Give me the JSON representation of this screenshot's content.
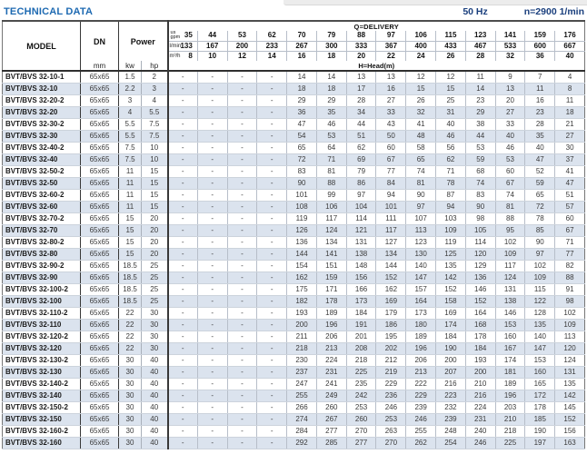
{
  "header": {
    "title": "TECHNICAL DATA",
    "frequency": "50 Hz",
    "speed": "n=2900 1/min"
  },
  "table": {
    "columns": {
      "model": "MODEL",
      "dn": "DN",
      "dn_unit": "mm",
      "power": "Power",
      "power_kw": "kw",
      "power_hp": "hp",
      "delivery_title": "Q=DELIVERY",
      "head_title": "H=Head(m)"
    },
    "units": {
      "gpm_line1": "us",
      "gpm_line2": "gpm",
      "lmin": "l/min",
      "m3h": "m³/h"
    },
    "delivery": {
      "us_gpm": [
        "35",
        "44",
        "53",
        "62",
        "70",
        "79",
        "88",
        "97",
        "106",
        "115",
        "123",
        "141",
        "159",
        "176"
      ],
      "l_min": [
        "133",
        "167",
        "200",
        "233",
        "267",
        "300",
        "333",
        "367",
        "400",
        "433",
        "467",
        "533",
        "600",
        "667"
      ],
      "m3_h": [
        "8",
        "10",
        "12",
        "14",
        "16",
        "18",
        "20",
        "22",
        "24",
        "26",
        "28",
        "32",
        "36",
        "40"
      ]
    },
    "rows": [
      {
        "model": "BVT/BVS 32-10-1",
        "dn": "65x65",
        "kw": "1.5",
        "hp": "2",
        "head": [
          "-",
          "-",
          "-",
          "-",
          "14",
          "14",
          "13",
          "13",
          "12",
          "12",
          "11",
          "9",
          "7",
          "4"
        ]
      },
      {
        "model": "BVT/BVS 32-10",
        "dn": "65x65",
        "kw": "2.2",
        "hp": "3",
        "head": [
          "-",
          "-",
          "-",
          "-",
          "18",
          "18",
          "17",
          "16",
          "15",
          "15",
          "14",
          "13",
          "11",
          "8"
        ]
      },
      {
        "model": "BVT/BVS 32-20-2",
        "dn": "65x65",
        "kw": "3",
        "hp": "4",
        "head": [
          "-",
          "-",
          "-",
          "-",
          "29",
          "29",
          "28",
          "27",
          "26",
          "25",
          "23",
          "20",
          "16",
          "11"
        ]
      },
      {
        "model": "BVT/BVS 32-20",
        "dn": "65x65",
        "kw": "4",
        "hp": "5.5",
        "head": [
          "-",
          "-",
          "-",
          "-",
          "36",
          "35",
          "34",
          "33",
          "32",
          "31",
          "29",
          "27",
          "23",
          "18"
        ]
      },
      {
        "model": "BVT/BVS 32-30-2",
        "dn": "65x65",
        "kw": "5.5",
        "hp": "7.5",
        "head": [
          "-",
          "-",
          "-",
          "-",
          "47",
          "46",
          "44",
          "43",
          "41",
          "40",
          "38",
          "33",
          "28",
          "21"
        ]
      },
      {
        "model": "BVT/BVS 32-30",
        "dn": "65x65",
        "kw": "5.5",
        "hp": "7.5",
        "head": [
          "-",
          "-",
          "-",
          "-",
          "54",
          "53",
          "51",
          "50",
          "48",
          "46",
          "44",
          "40",
          "35",
          "27"
        ]
      },
      {
        "model": "BVT/BVS 32-40-2",
        "dn": "65x65",
        "kw": "7.5",
        "hp": "10",
        "head": [
          "-",
          "-",
          "-",
          "-",
          "65",
          "64",
          "62",
          "60",
          "58",
          "56",
          "53",
          "46",
          "40",
          "30"
        ]
      },
      {
        "model": "BVT/BVS 32-40",
        "dn": "65x65",
        "kw": "7.5",
        "hp": "10",
        "head": [
          "-",
          "-",
          "-",
          "-",
          "72",
          "71",
          "69",
          "67",
          "65",
          "62",
          "59",
          "53",
          "47",
          "37"
        ]
      },
      {
        "model": "BVT/BVS 32-50-2",
        "dn": "65x65",
        "kw": "11",
        "hp": "15",
        "head": [
          "-",
          "-",
          "-",
          "-",
          "83",
          "81",
          "79",
          "77",
          "74",
          "71",
          "68",
          "60",
          "52",
          "41"
        ]
      },
      {
        "model": "BVT/BVS 32-50",
        "dn": "65x65",
        "kw": "11",
        "hp": "15",
        "head": [
          "-",
          "-",
          "-",
          "-",
          "90",
          "88",
          "86",
          "84",
          "81",
          "78",
          "74",
          "67",
          "59",
          "47"
        ]
      },
      {
        "model": "BVT/BVS 32-60-2",
        "dn": "65x65",
        "kw": "11",
        "hp": "15",
        "head": [
          "-",
          "-",
          "-",
          "-",
          "101",
          "99",
          "97",
          "94",
          "90",
          "87",
          "83",
          "74",
          "65",
          "51"
        ]
      },
      {
        "model": "BVT/BVS 32-60",
        "dn": "65x65",
        "kw": "11",
        "hp": "15",
        "head": [
          "-",
          "-",
          "-",
          "-",
          "108",
          "106",
          "104",
          "101",
          "97",
          "94",
          "90",
          "81",
          "72",
          "57"
        ]
      },
      {
        "model": "BVT/BVS 32-70-2",
        "dn": "65x65",
        "kw": "15",
        "hp": "20",
        "head": [
          "-",
          "-",
          "-",
          "-",
          "119",
          "117",
          "114",
          "111",
          "107",
          "103",
          "98",
          "88",
          "78",
          "60"
        ]
      },
      {
        "model": "BVT/BVS 32-70",
        "dn": "65x65",
        "kw": "15",
        "hp": "20",
        "head": [
          "-",
          "-",
          "-",
          "-",
          "126",
          "124",
          "121",
          "117",
          "113",
          "109",
          "105",
          "95",
          "85",
          "67"
        ]
      },
      {
        "model": "BVT/BVS 32-80-2",
        "dn": "65x65",
        "kw": "15",
        "hp": "20",
        "head": [
          "-",
          "-",
          "-",
          "-",
          "136",
          "134",
          "131",
          "127",
          "123",
          "119",
          "114",
          "102",
          "90",
          "71"
        ]
      },
      {
        "model": "BVT/BVS 32-80",
        "dn": "65x65",
        "kw": "15",
        "hp": "20",
        "head": [
          "-",
          "-",
          "-",
          "-",
          "144",
          "141",
          "138",
          "134",
          "130",
          "125",
          "120",
          "109",
          "97",
          "77"
        ]
      },
      {
        "model": "BVT/BVS 32-90-2",
        "dn": "65x65",
        "kw": "18.5",
        "hp": "25",
        "head": [
          "-",
          "-",
          "-",
          "-",
          "154",
          "151",
          "148",
          "144",
          "140",
          "135",
          "129",
          "117",
          "102",
          "82"
        ]
      },
      {
        "model": "BVT/BVS 32-90",
        "dn": "65x65",
        "kw": "18.5",
        "hp": "25",
        "head": [
          "-",
          "-",
          "-",
          "-",
          "162",
          "159",
          "156",
          "152",
          "147",
          "142",
          "136",
          "124",
          "109",
          "88"
        ]
      },
      {
        "model": "BVT/BVS 32-100-2",
        "dn": "65x65",
        "kw": "18.5",
        "hp": "25",
        "head": [
          "-",
          "-",
          "-",
          "-",
          "175",
          "171",
          "166",
          "162",
          "157",
          "152",
          "146",
          "131",
          "115",
          "91"
        ]
      },
      {
        "model": "BVT/BVS 32-100",
        "dn": "65x65",
        "kw": "18.5",
        "hp": "25",
        "head": [
          "-",
          "-",
          "-",
          "-",
          "182",
          "178",
          "173",
          "169",
          "164",
          "158",
          "152",
          "138",
          "122",
          "98"
        ]
      },
      {
        "model": "BVT/BVS 32-110-2",
        "dn": "65x65",
        "kw": "22",
        "hp": "30",
        "head": [
          "-",
          "-",
          "-",
          "-",
          "193",
          "189",
          "184",
          "179",
          "173",
          "169",
          "164",
          "146",
          "128",
          "102"
        ]
      },
      {
        "model": "BVT/BVS 32-110",
        "dn": "65x65",
        "kw": "22",
        "hp": "30",
        "head": [
          "-",
          "-",
          "-",
          "-",
          "200",
          "196",
          "191",
          "186",
          "180",
          "174",
          "168",
          "153",
          "135",
          "109"
        ]
      },
      {
        "model": "BVT/BVS 32-120-2",
        "dn": "65x65",
        "kw": "22",
        "hp": "30",
        "head": [
          "-",
          "-",
          "-",
          "-",
          "211",
          "206",
          "201",
          "195",
          "189",
          "184",
          "178",
          "160",
          "140",
          "113"
        ]
      },
      {
        "model": "BVT/BVS 32-120",
        "dn": "65x65",
        "kw": "22",
        "hp": "30",
        "head": [
          "-",
          "-",
          "-",
          "-",
          "218",
          "213",
          "208",
          "202",
          "196",
          "190",
          "184",
          "167",
          "147",
          "120"
        ]
      },
      {
        "model": "BVT/BVS 32-130-2",
        "dn": "65x65",
        "kw": "30",
        "hp": "40",
        "head": [
          "-",
          "-",
          "-",
          "-",
          "230",
          "224",
          "218",
          "212",
          "206",
          "200",
          "193",
          "174",
          "153",
          "124"
        ]
      },
      {
        "model": "BVT/BVS 32-130",
        "dn": "65x65",
        "kw": "30",
        "hp": "40",
        "head": [
          "-",
          "-",
          "-",
          "-",
          "237",
          "231",
          "225",
          "219",
          "213",
          "207",
          "200",
          "181",
          "160",
          "131"
        ]
      },
      {
        "model": "BVT/BVS 32-140-2",
        "dn": "65x65",
        "kw": "30",
        "hp": "40",
        "head": [
          "-",
          "-",
          "-",
          "-",
          "247",
          "241",
          "235",
          "229",
          "222",
          "216",
          "210",
          "189",
          "165",
          "135"
        ]
      },
      {
        "model": "BVT/BVS 32-140",
        "dn": "65x65",
        "kw": "30",
        "hp": "40",
        "head": [
          "-",
          "-",
          "-",
          "-",
          "255",
          "249",
          "242",
          "236",
          "229",
          "223",
          "216",
          "196",
          "172",
          "142"
        ]
      },
      {
        "model": "BVT/BVS 32-150-2",
        "dn": "65x65",
        "kw": "30",
        "hp": "40",
        "head": [
          "-",
          "-",
          "-",
          "-",
          "266",
          "260",
          "253",
          "246",
          "239",
          "232",
          "224",
          "203",
          "178",
          "145"
        ]
      },
      {
        "model": "BVT/BVS 32-150",
        "dn": "65x65",
        "kw": "30",
        "hp": "40",
        "head": [
          "-",
          "-",
          "-",
          "-",
          "274",
          "267",
          "260",
          "253",
          "246",
          "239",
          "231",
          "210",
          "185",
          "152"
        ]
      },
      {
        "model": "BVT/BVS 32-160-2",
        "dn": "65x65",
        "kw": "30",
        "hp": "40",
        "head": [
          "-",
          "-",
          "-",
          "-",
          "284",
          "277",
          "270",
          "263",
          "255",
          "248",
          "240",
          "218",
          "190",
          "156"
        ]
      },
      {
        "model": "BVT/BVS 32-160",
        "dn": "65x65",
        "kw": "30",
        "hp": "40",
        "head": [
          "-",
          "-",
          "-",
          "-",
          "292",
          "285",
          "277",
          "270",
          "262",
          "254",
          "246",
          "225",
          "197",
          "163"
        ]
      }
    ]
  }
}
